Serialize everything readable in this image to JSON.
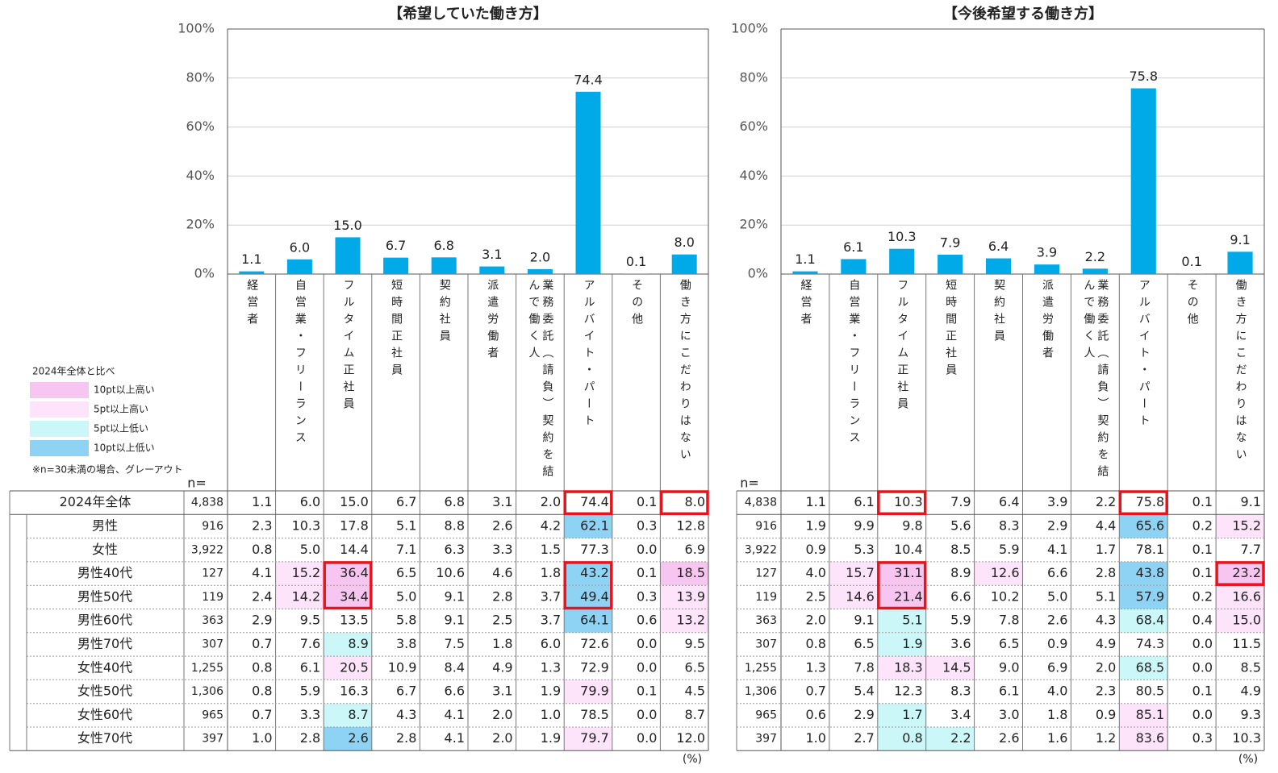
{
  "row_labels": [
    "2024年全体",
    "男性",
    "女性",
    "男性40代",
    "男性50代",
    "男性60代",
    "男性70代",
    "女性40代",
    "女性50代",
    "女性60代",
    "女性70代"
  ],
  "legend": {
    "title": "2024年全体と比べ",
    "items": [
      {
        "label": "10pt以上高い",
        "color": "#f7c6f0"
      },
      {
        "label": "5pt以上高い",
        "color": "#fde4fa"
      },
      {
        "label": "5pt以上低い",
        "color": "#ccf7f8"
      },
      {
        "label": "10pt以上低い",
        "color": "#8fd3f4"
      }
    ],
    "note": "※n=30未満の場合、グレーアウト"
  },
  "chart_data": [
    {
      "type": "bar",
      "title": "【希望していた働き方】",
      "categories": [
        "経営者",
        "自営業・フリーランス",
        "フルタイム正社員",
        "短時間正社員",
        "契約社員",
        "派遣労働者",
        "業務委託（請負）契約を結んで働く人",
        "アルバイト・パート",
        "その他",
        "働き方にこだわりはない"
      ],
      "values": [
        1.1,
        6.0,
        15.0,
        6.7,
        6.8,
        3.1,
        2.0,
        74.4,
        0.1,
        8.0
      ],
      "value_labels": [
        "1.1",
        "6.0",
        "15.0",
        "6.7",
        "6.8",
        "3.1",
        "2.0",
        "74.4",
        "0.1",
        "8.0"
      ],
      "color": "#00a9e8",
      "ylim": [
        0,
        100
      ],
      "yticks": [
        {
          "value": 0,
          "label": "0%"
        },
        {
          "value": 20,
          "label": "20%"
        },
        {
          "value": 40,
          "label": "40%"
        },
        {
          "value": 60,
          "label": "60%"
        },
        {
          "value": 80,
          "label": "80%"
        },
        {
          "value": 100,
          "label": "100%"
        }
      ],
      "grid": true,
      "n_label": "n=",
      "unit": "(%)",
      "table": {
        "n": [
          "4,838",
          "916",
          "3,922",
          "127",
          "119",
          "363",
          "307",
          "1,255",
          "1,306",
          "965",
          "397"
        ],
        "rows": [
          [
            "1.1",
            "6.0",
            "15.0",
            "6.7",
            "6.8",
            "3.1",
            "2.0",
            "74.4",
            "0.1",
            "8.0"
          ],
          [
            "2.3",
            "10.3",
            "17.8",
            "5.1",
            "8.8",
            "2.6",
            "4.2",
            "62.1",
            "0.3",
            "12.8"
          ],
          [
            "0.8",
            "5.0",
            "14.4",
            "7.1",
            "6.3",
            "3.3",
            "1.5",
            "77.3",
            "0.0",
            "6.9"
          ],
          [
            "4.1",
            "15.2",
            "36.4",
            "6.5",
            "10.6",
            "4.6",
            "1.8",
            "43.2",
            "0.1",
            "18.5"
          ],
          [
            "2.4",
            "14.2",
            "34.4",
            "5.0",
            "9.1",
            "2.8",
            "3.7",
            "49.4",
            "0.3",
            "13.9"
          ],
          [
            "2.9",
            "9.5",
            "13.5",
            "5.8",
            "9.1",
            "2.5",
            "3.7",
            "64.1",
            "0.6",
            "13.2"
          ],
          [
            "0.7",
            "7.6",
            "8.9",
            "3.8",
            "7.5",
            "1.8",
            "6.0",
            "72.6",
            "0.0",
            "9.5"
          ],
          [
            "0.8",
            "6.1",
            "20.5",
            "10.9",
            "8.4",
            "4.9",
            "1.3",
            "72.9",
            "0.0",
            "6.5"
          ],
          [
            "0.8",
            "5.9",
            "16.3",
            "6.7",
            "6.6",
            "3.1",
            "1.9",
            "79.9",
            "0.1",
            "4.5"
          ],
          [
            "0.7",
            "3.3",
            "8.7",
            "4.3",
            "4.1",
            "2.0",
            "1.0",
            "78.5",
            "0.0",
            "8.7"
          ],
          [
            "1.0",
            "2.8",
            "2.6",
            "2.8",
            "4.1",
            "2.0",
            "1.9",
            "79.7",
            "0.0",
            "12.0"
          ]
        ],
        "shaded": [
          [
            1,
            7,
            3
          ],
          [
            3,
            1,
            1
          ],
          [
            3,
            2,
            0
          ],
          [
            3,
            7,
            3
          ],
          [
            3,
            9,
            0
          ],
          [
            4,
            1,
            1
          ],
          [
            4,
            2,
            0
          ],
          [
            4,
            7,
            3
          ],
          [
            4,
            9,
            1
          ],
          [
            5,
            7,
            3
          ],
          [
            5,
            9,
            1
          ],
          [
            6,
            2,
            2
          ],
          [
            7,
            2,
            1
          ],
          [
            8,
            7,
            1
          ],
          [
            9,
            2,
            2
          ],
          [
            10,
            2,
            3
          ],
          [
            10,
            7,
            1
          ]
        ],
        "boxed": [
          [
            0,
            7
          ],
          [
            0,
            9
          ],
          [
            3,
            2
          ],
          [
            4,
            2
          ],
          [
            3,
            7
          ],
          [
            4,
            7
          ]
        ]
      }
    },
    {
      "type": "bar",
      "title": "【今後希望する働き方】",
      "categories": [
        "経営者",
        "自営業・フリーランス",
        "フルタイム正社員",
        "短時間正社員",
        "契約社員",
        "派遣労働者",
        "業務委託（請負）契約を結んで働く人",
        "アルバイト・パート",
        "その他",
        "働き方にこだわりはない"
      ],
      "values": [
        1.1,
        6.1,
        10.3,
        7.9,
        6.4,
        3.9,
        2.2,
        75.8,
        0.1,
        9.1
      ],
      "color": "#00a9e8",
      "ylim": [
        0,
        100
      ],
      "yticks": [
        {
          "value": 0,
          "label": "0%"
        },
        {
          "value": 20,
          "label": "20%"
        },
        {
          "value": 40,
          "label": "40%"
        },
        {
          "value": 60,
          "label": "60%"
        },
        {
          "value": 80,
          "label": "80%"
        },
        {
          "value": 100,
          "label": "100%"
        }
      ],
      "grid": true,
      "n_label": "n=",
      "unit": "(%)",
      "table": {
        "n": [
          "4,838",
          "916",
          "3,922",
          "127",
          "119",
          "363",
          "307",
          "1,255",
          "1,306",
          "965",
          "397"
        ],
        "rows": [
          [
            "1.1",
            "6.1",
            "10.3",
            "7.9",
            "6.4",
            "3.9",
            "2.2",
            "75.8",
            "0.1",
            "9.1"
          ],
          [
            "1.9",
            "9.9",
            "9.8",
            "5.6",
            "8.3",
            "2.9",
            "4.4",
            "65.6",
            "0.2",
            "15.2"
          ],
          [
            "0.9",
            "5.3",
            "10.4",
            "8.5",
            "5.9",
            "4.1",
            "1.7",
            "78.1",
            "0.1",
            "7.7"
          ],
          [
            "4.0",
            "15.7",
            "31.1",
            "8.9",
            "12.6",
            "6.6",
            "2.8",
            "43.8",
            "0.1",
            "23.2"
          ],
          [
            "2.5",
            "14.6",
            "21.4",
            "6.6",
            "10.2",
            "5.0",
            "5.1",
            "57.9",
            "0.2",
            "16.6"
          ],
          [
            "2.0",
            "9.1",
            "5.1",
            "5.9",
            "7.8",
            "2.6",
            "4.3",
            "68.4",
            "0.4",
            "15.0"
          ],
          [
            "0.8",
            "6.5",
            "1.9",
            "3.6",
            "6.5",
            "0.9",
            "4.9",
            "74.3",
            "0.0",
            "11.5"
          ],
          [
            "1.3",
            "7.8",
            "18.3",
            "14.5",
            "9.0",
            "6.9",
            "2.0",
            "68.5",
            "0.0",
            "8.5"
          ],
          [
            "0.7",
            "5.4",
            "12.3",
            "8.3",
            "6.1",
            "4.0",
            "2.3",
            "80.5",
            "0.1",
            "4.9"
          ],
          [
            "0.6",
            "2.9",
            "1.7",
            "3.4",
            "3.0",
            "1.8",
            "0.9",
            "85.1",
            "0.0",
            "9.3"
          ],
          [
            "1.0",
            "2.7",
            "0.8",
            "2.2",
            "2.6",
            "1.6",
            "1.2",
            "83.6",
            "0.3",
            "10.3"
          ]
        ],
        "shaded": [
          [
            1,
            7,
            3
          ],
          [
            1,
            9,
            1
          ],
          [
            3,
            1,
            1
          ],
          [
            3,
            2,
            0
          ],
          [
            3,
            4,
            1
          ],
          [
            3,
            7,
            3
          ],
          [
            3,
            9,
            0
          ],
          [
            4,
            1,
            1
          ],
          [
            4,
            2,
            0
          ],
          [
            4,
            7,
            3
          ],
          [
            4,
            9,
            1
          ],
          [
            5,
            2,
            2
          ],
          [
            5,
            7,
            2
          ],
          [
            5,
            9,
            1
          ],
          [
            6,
            2,
            2
          ],
          [
            7,
            2,
            1
          ],
          [
            7,
            3,
            1
          ],
          [
            7,
            7,
            2
          ],
          [
            9,
            2,
            2
          ],
          [
            9,
            7,
            1
          ],
          [
            10,
            2,
            2
          ],
          [
            10,
            3,
            2
          ],
          [
            10,
            7,
            1
          ]
        ],
        "boxed": [
          [
            0,
            2
          ],
          [
            0,
            7
          ],
          [
            3,
            2
          ],
          [
            4,
            2
          ],
          [
            3,
            9
          ]
        ]
      }
    }
  ]
}
